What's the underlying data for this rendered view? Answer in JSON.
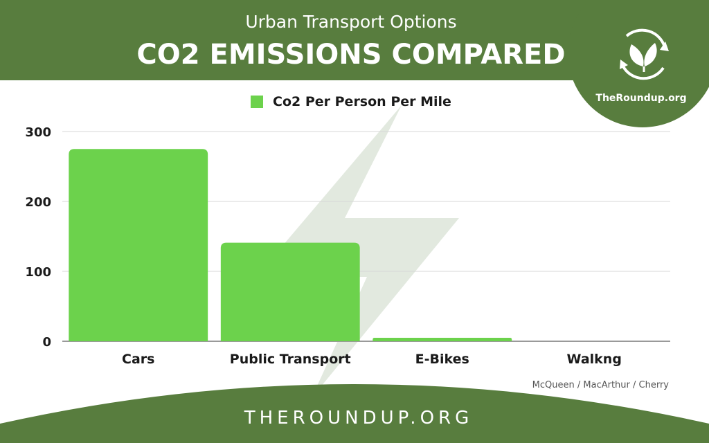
{
  "header": {
    "subtitle": "Urban Transport Options",
    "title": "CO2 EMISSIONS COMPARED",
    "bg_color": "#587d3e"
  },
  "badge": {
    "brand": "TheRoundup.org",
    "icon": "leaf-recycle-icon"
  },
  "footer": {
    "text": "THEROUNDUP.ORG"
  },
  "credit": "McQueen / MacArthur  / Cherry",
  "chart_data": {
    "type": "bar",
    "categories": [
      "Cars",
      "Public Transport",
      "E-Bikes",
      "Walkng"
    ],
    "series": [
      {
        "name": "Co2 Per Person Per Mile",
        "values": [
          275,
          141,
          5,
          0
        ],
        "color": "#6cd24c"
      }
    ],
    "title": "CO2 EMISSIONS COMPARED",
    "xlabel": "",
    "ylabel": "",
    "ylim": [
      0,
      300
    ],
    "yticks": [
      0,
      100,
      200,
      300
    ],
    "grid": true,
    "legend": "top-center"
  }
}
